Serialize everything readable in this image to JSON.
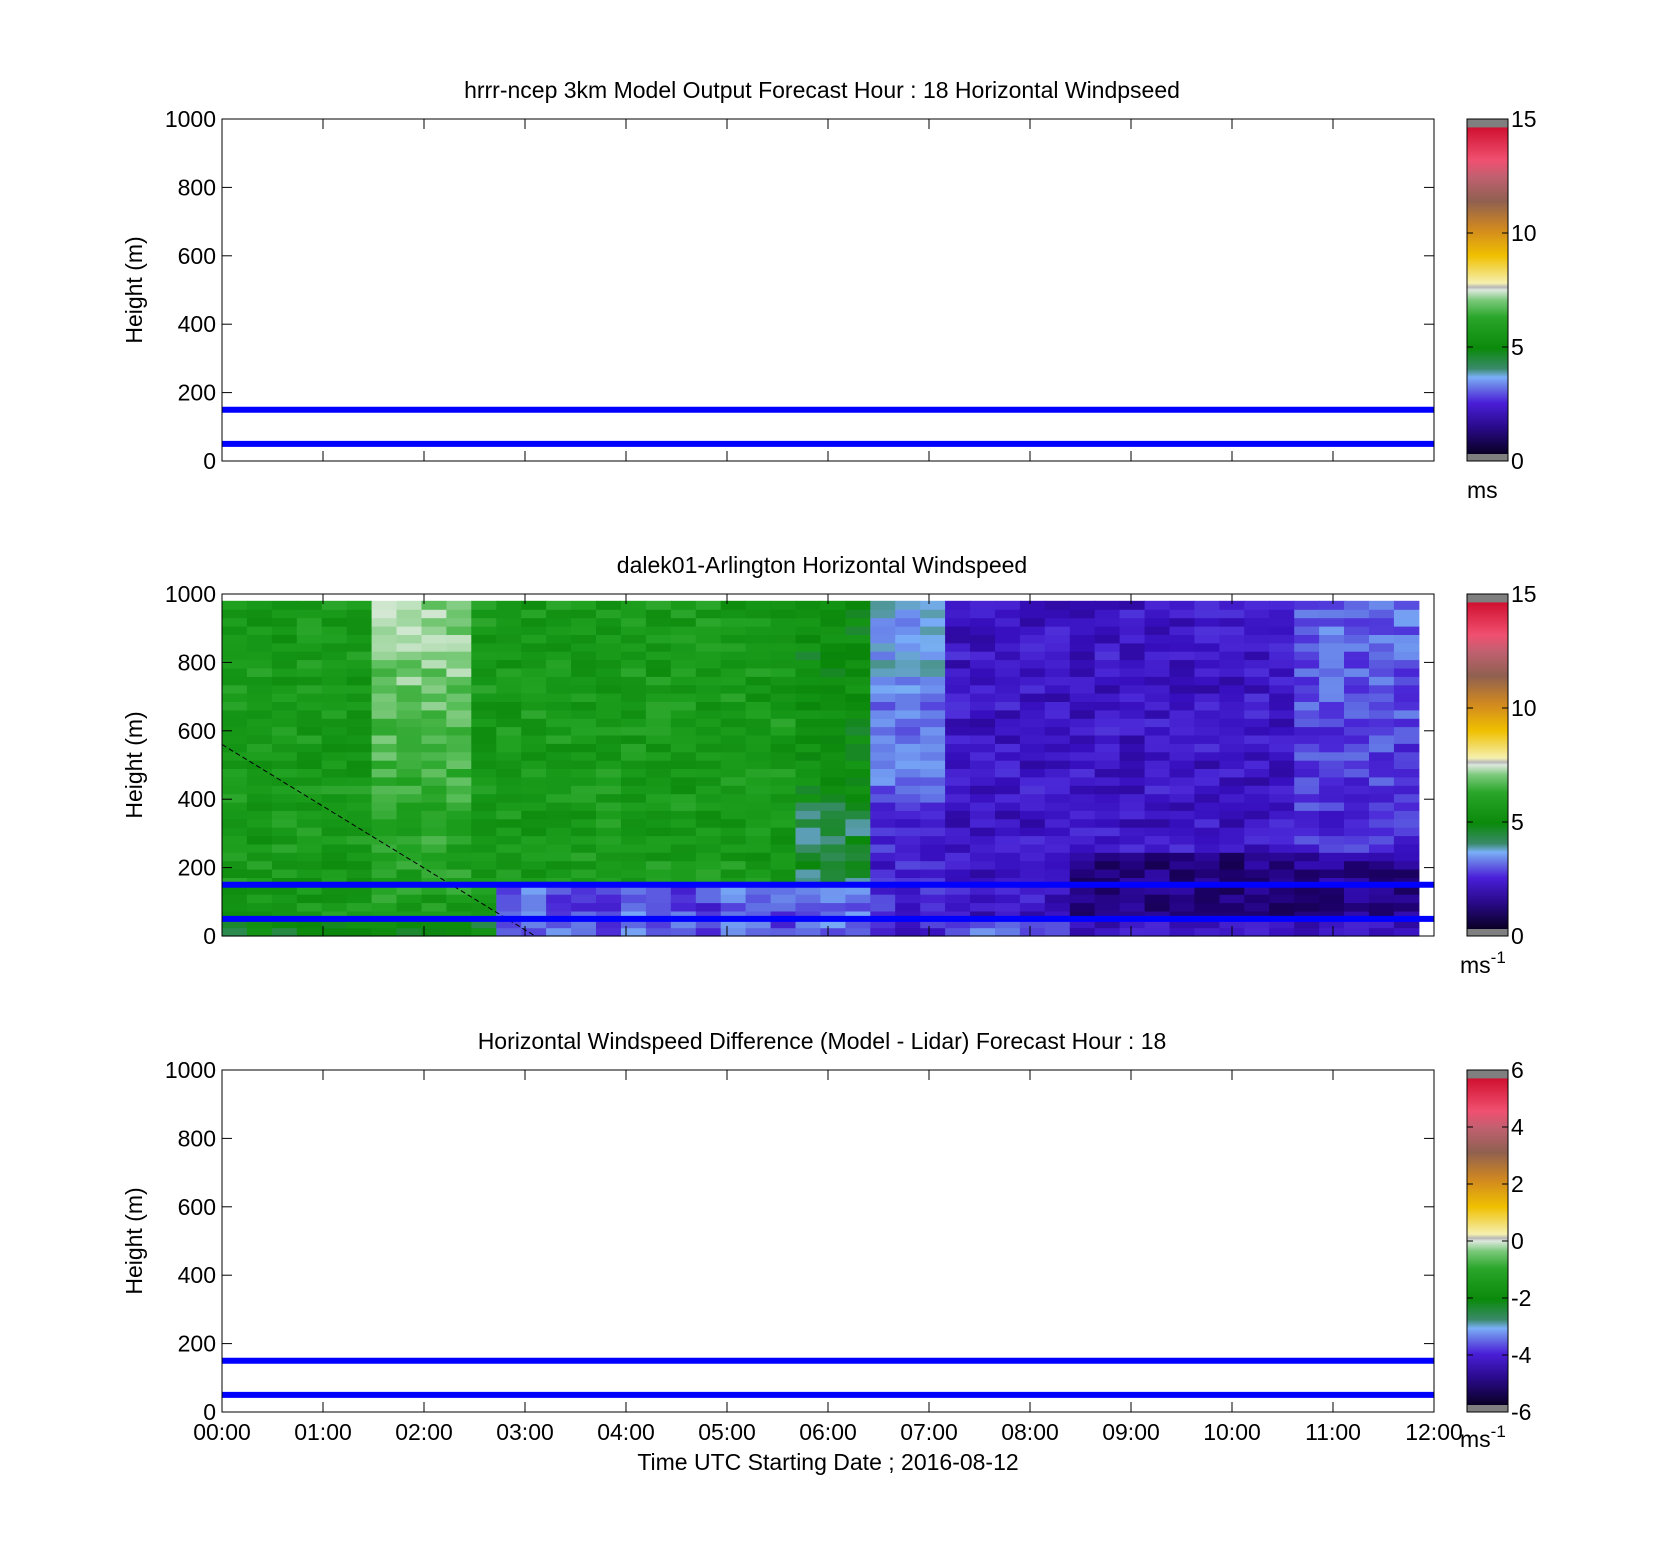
{
  "chart_data": [
    {
      "type": "heatmap",
      "title": "hrrr-ncep 3km Model Output   Forecast Hour : 18 Horizontal Windpseed",
      "ylabel": "Height (m)",
      "xlabel": "",
      "ylim": [
        0,
        1000
      ],
      "xlim": [
        "00:00",
        "12:00"
      ],
      "yticks": [
        0,
        200,
        400,
        600,
        800,
        1000
      ],
      "x_tick_labels_shown": false,
      "reference_lines": [
        50,
        150
      ],
      "values": "none",
      "colorbar": {
        "min": 0,
        "max": 15,
        "ticks": [
          0,
          5,
          10,
          15
        ],
        "unit": "ms",
        "unit_superscript": ""
      }
    },
    {
      "type": "heatmap",
      "title": "dalek01-Arlington  Horizontal Windspeed",
      "ylabel": "Height (m)",
      "xlabel": "",
      "ylim": [
        0,
        1000
      ],
      "xlim": [
        "00:00",
        "12:00"
      ],
      "yticks": [
        0,
        200,
        400,
        600,
        800,
        1000
      ],
      "x_tick_labels_shown": false,
      "reference_lines": [
        50,
        150
      ],
      "dashed_line": {
        "from": [
          "00:00",
          560
        ],
        "to": [
          "03:06",
          0
        ]
      },
      "values": "gridded wind speed (m/s): about 4.5-6.5 (green) from 00:00 to 05:45 above ~150 m, with a lighter band (~7 m/s) near 01:45-02:15; speeds fall to about 1.5-3 m/s (blue-purple) after 06:00 and below ~150 m from 02:45 onward",
      "colorbar": {
        "min": 0,
        "max": 15,
        "ticks": [
          0,
          5,
          10,
          15
        ],
        "unit": "ms",
        "unit_superscript": "-1"
      }
    },
    {
      "type": "heatmap",
      "title": "Horizontal Windspeed Difference (Model - Lidar) Forecast Hour : 18",
      "ylabel": "Height (m)",
      "xlabel": "Time UTC  Starting Date ; 2016-08-12",
      "ylim": [
        0,
        1000
      ],
      "xlim": [
        "00:00",
        "12:00"
      ],
      "yticks": [
        0,
        200,
        400,
        600,
        800,
        1000
      ],
      "xticks": [
        "00:00",
        "01:00",
        "02:00",
        "03:00",
        "04:00",
        "05:00",
        "06:00",
        "07:00",
        "08:00",
        "09:00",
        "10:00",
        "11:00",
        "12:00"
      ],
      "x_tick_labels_shown": true,
      "reference_lines": [
        50,
        150
      ],
      "values": "none",
      "colorbar": {
        "min": -6,
        "max": 6,
        "ticks": [
          -6,
          -4,
          -2,
          0,
          2,
          4,
          6
        ],
        "unit": "ms",
        "unit_superscript": "-1"
      }
    }
  ],
  "colors": {
    "reference_line": "#0000ff",
    "colormap": [
      "#7f7f7f",
      "#0a0026",
      "#2a0a8c",
      "#4a1ed8",
      "#6a7ee8",
      "#7aaff8",
      "#3a8a6a",
      "#0a8a0a",
      "#2aa62a",
      "#7ac87a",
      "#dde8dd",
      "#f5f0b0",
      "#f0c000",
      "#d08820",
      "#906050",
      "#c06070",
      "#f05070",
      "#d01030",
      "#7f7f7f"
    ]
  }
}
